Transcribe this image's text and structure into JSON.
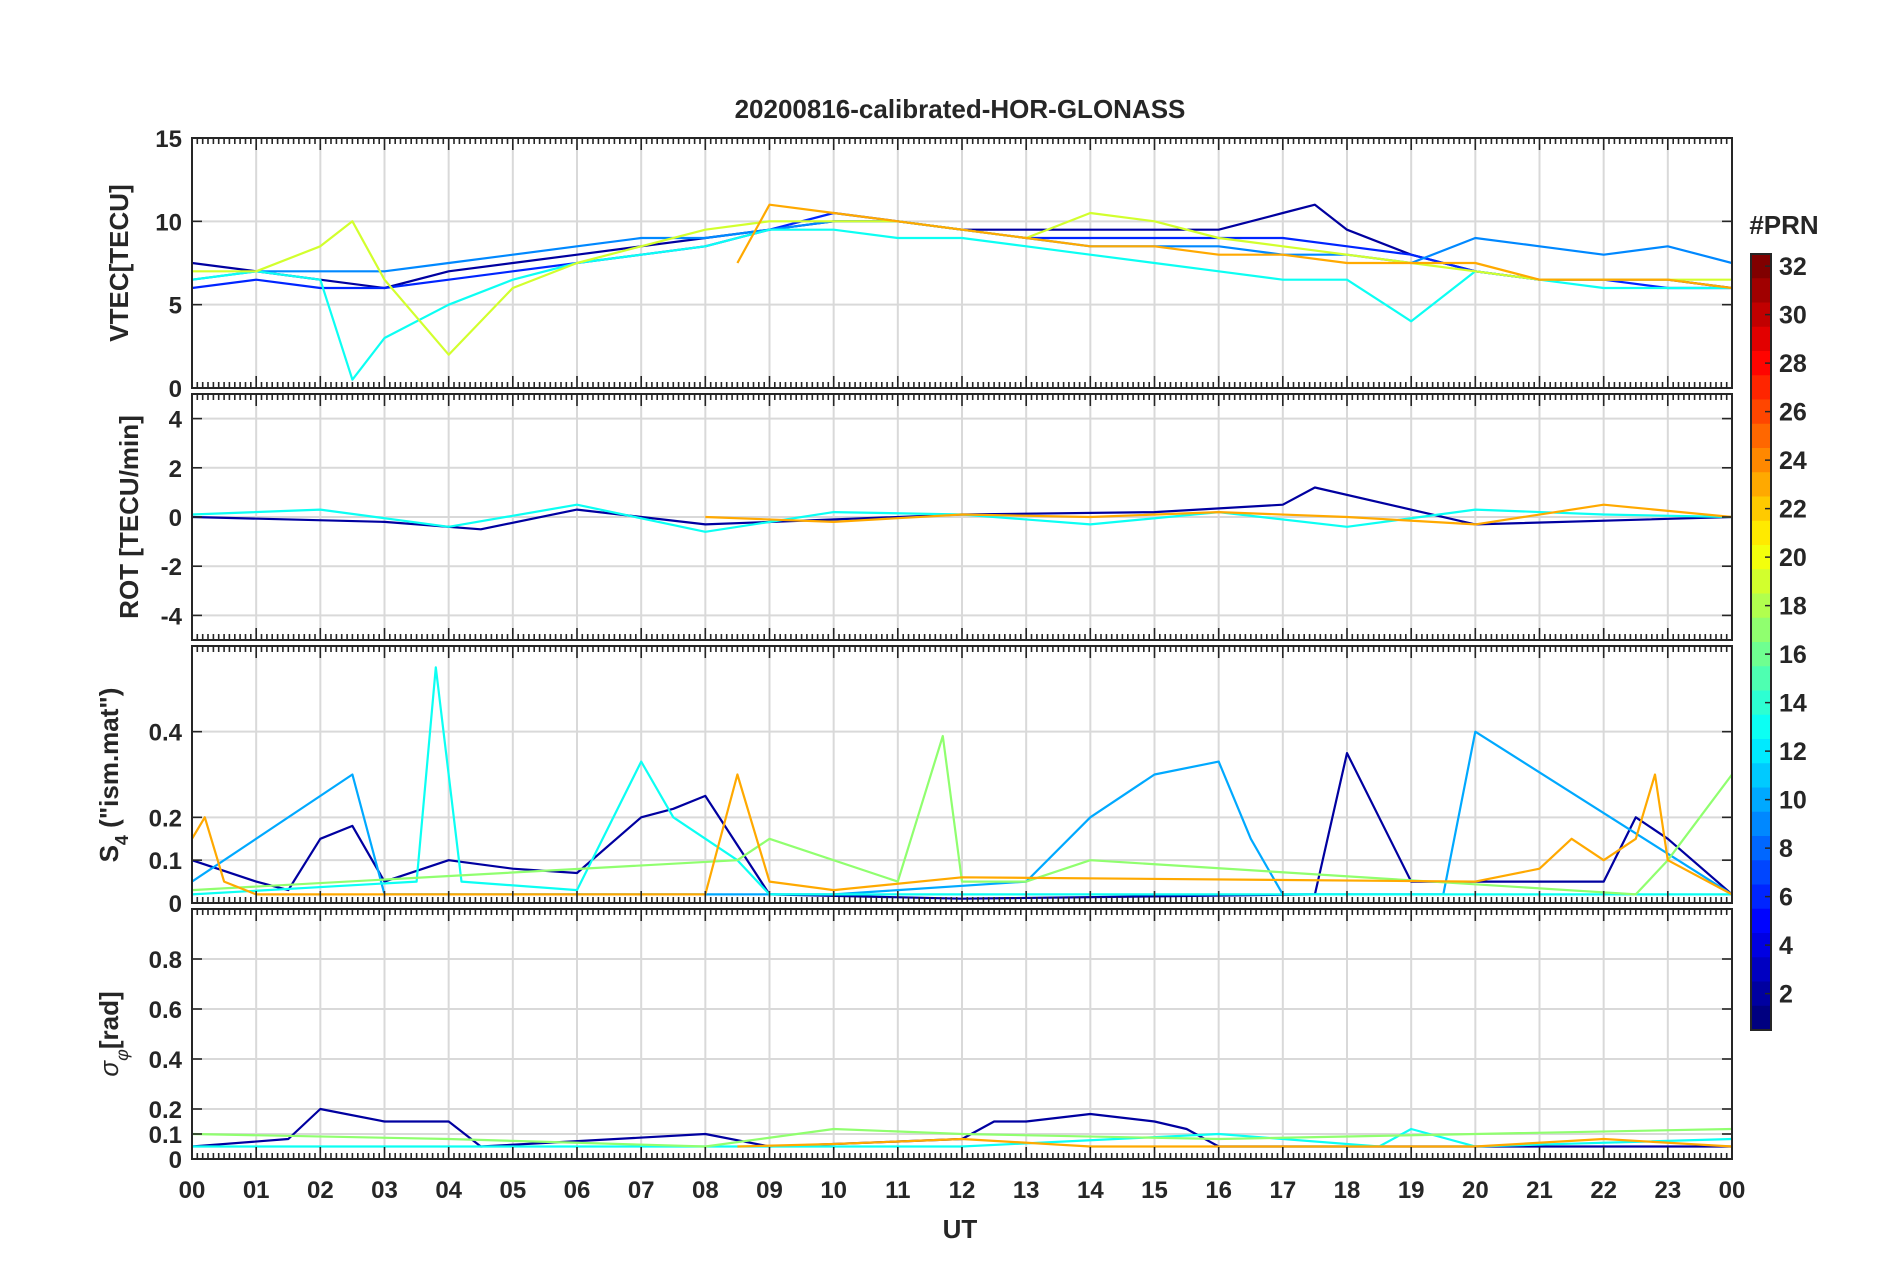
{
  "chart_data": [
    {
      "type": "line",
      "title": "20200816-calibrated-HOR-GLONASS",
      "xlabel": "",
      "ylabel": "VTEC[TECU]",
      "ylim": [
        0,
        15
      ],
      "yticks": [
        0,
        5,
        10,
        15
      ],
      "xlim": [
        0,
        24
      ],
      "grid": true,
      "series_description_note": "",
      "series": [
        {
          "prn": 2,
          "x": [
            0,
            1,
            2,
            3,
            4,
            5,
            6,
            7,
            8,
            9,
            10,
            11,
            12,
            13,
            14,
            15,
            16,
            17,
            17.5,
            18,
            19,
            20,
            21,
            22,
            23,
            24
          ],
          "values": [
            7.5,
            7,
            6.5,
            6,
            7,
            7.5,
            8,
            8.5,
            9,
            9.5,
            10,
            10,
            9.5,
            9.5,
            9.5,
            9.5,
            9.5,
            10.5,
            11,
            9.5,
            8,
            7,
            6.5,
            6.5,
            6.5,
            6
          ]
        },
        {
          "prn": 6,
          "x": [
            0,
            1,
            2,
            3,
            4,
            5,
            6,
            7,
            8,
            9,
            10,
            11,
            12,
            13,
            14,
            15,
            16,
            17,
            18,
            19,
            20,
            21,
            22,
            23,
            24
          ],
          "values": [
            6,
            6.5,
            6,
            6,
            6.5,
            7,
            7.5,
            8,
            8.5,
            9.5,
            10.5,
            10,
            9.5,
            9,
            9,
            9,
            9,
            9,
            8.5,
            8,
            7,
            6.5,
            6.5,
            6,
            6
          ]
        },
        {
          "prn": 9,
          "x": [
            0,
            1,
            2,
            3,
            4,
            5,
            6,
            7,
            8,
            9,
            10,
            11,
            12,
            13,
            14,
            15,
            16,
            17,
            18,
            19,
            20,
            21,
            22,
            23,
            24
          ],
          "values": [
            6.5,
            7,
            7,
            7,
            7.5,
            8,
            8.5,
            9,
            9,
            9.5,
            10,
            10,
            9.5,
            9,
            8.5,
            8.5,
            8.5,
            8,
            8,
            7.5,
            9,
            8.5,
            8,
            8.5,
            7.5
          ]
        },
        {
          "prn": 13,
          "x": [
            0,
            1,
            2,
            2.5,
            3,
            4,
            5,
            6,
            7,
            8,
            9,
            10,
            11,
            12,
            13,
            14,
            15,
            16,
            17,
            18,
            19,
            20,
            21,
            22,
            23,
            24
          ],
          "values": [
            6.5,
            7,
            6.5,
            0.5,
            3,
            5,
            6.5,
            7.5,
            8,
            8.5,
            9.5,
            9.5,
            9,
            9,
            8.5,
            8,
            7.5,
            7,
            6.5,
            6.5,
            4,
            7,
            6.5,
            6,
            6,
            6
          ]
        },
        {
          "prn": 19,
          "x": [
            0,
            1,
            2,
            2.5,
            3,
            4,
            5,
            6,
            7,
            8,
            9,
            10,
            11,
            12,
            13,
            14,
            15,
            16,
            17,
            18,
            19,
            20,
            21,
            22,
            23,
            24
          ],
          "values": [
            7,
            7,
            8.5,
            10,
            6.5,
            2,
            6,
            7.5,
            8.5,
            9.5,
            10,
            10,
            10,
            9.5,
            9,
            10.5,
            10,
            9,
            8.5,
            8,
            7.5,
            7,
            6.5,
            6.5,
            6.5,
            6.5
          ]
        },
        {
          "prn": 23,
          "x": [
            8.5,
            9,
            10,
            11,
            12,
            13,
            14,
            15,
            16,
            17,
            18,
            19,
            20,
            21,
            22,
            23,
            24
          ],
          "values": [
            7.5,
            11,
            10.5,
            10,
            9.5,
            9,
            8.5,
            8.5,
            8,
            8,
            7.5,
            7.5,
            7.5,
            6.5,
            6.5,
            6.5,
            6
          ]
        }
      ]
    },
    {
      "type": "line",
      "title": "",
      "xlabel": "",
      "ylabel": "ROT [TECU/min]",
      "ylim": [
        -5,
        5
      ],
      "yticks": [
        -4,
        -2,
        0,
        2,
        4
      ],
      "xlim": [
        0,
        24
      ],
      "grid": true,
      "series": [
        {
          "prn": 2,
          "x": [
            0,
            3,
            4.5,
            6,
            8,
            12,
            15,
            17,
            17.5,
            20,
            24
          ],
          "values": [
            0,
            -0.2,
            -0.5,
            0.3,
            -0.3,
            0.1,
            0.2,
            0.5,
            1.2,
            -0.3,
            0
          ]
        },
        {
          "prn": 13,
          "x": [
            0,
            2,
            4,
            6,
            8,
            10,
            12,
            14,
            16,
            18,
            20,
            22,
            24
          ],
          "values": [
            0.1,
            0.3,
            -0.4,
            0.5,
            -0.6,
            0.2,
            0.1,
            -0.3,
            0.2,
            -0.4,
            0.3,
            0.1,
            0
          ]
        },
        {
          "prn": 23,
          "x": [
            8,
            10,
            12,
            14,
            16,
            18,
            20,
            22,
            24
          ],
          "values": [
            0,
            -0.2,
            0.1,
            0,
            0.2,
            0,
            -0.3,
            0.5,
            0
          ]
        }
      ]
    },
    {
      "type": "line",
      "title": "",
      "xlabel": "",
      "ylabel": "S4 (\"ism.mat\")",
      "ylim": [
        0,
        0.6
      ],
      "yticks": [
        0,
        0.1,
        0.2,
        0.4
      ],
      "xlim": [
        0,
        24
      ],
      "grid": true,
      "series": [
        {
          "prn": 2,
          "x": [
            0,
            1,
            1.5,
            2,
            2.5,
            3,
            4,
            5,
            6,
            7,
            7.5,
            8,
            9,
            12,
            17.5,
            18,
            19,
            20,
            22,
            22.5,
            23,
            24
          ],
          "values": [
            0.1,
            0.05,
            0.03,
            0.15,
            0.18,
            0.05,
            0.1,
            0.08,
            0.07,
            0.2,
            0.22,
            0.25,
            0.02,
            0.01,
            0.02,
            0.35,
            0.05,
            0.05,
            0.05,
            0.2,
            0.15,
            0.02
          ]
        },
        {
          "prn": 10,
          "x": [
            0,
            2.5,
            3,
            10,
            11,
            13,
            14,
            15,
            16,
            16.5,
            17,
            19.5,
            20,
            24
          ],
          "values": [
            0.05,
            0.3,
            0.02,
            0.02,
            0.03,
            0.05,
            0.2,
            0.3,
            0.33,
            0.15,
            0.02,
            0.02,
            0.4,
            0.02
          ]
        },
        {
          "prn": 13,
          "x": [
            0,
            3.5,
            3.8,
            4.2,
            6,
            7,
            7.5,
            8.5,
            9,
            24
          ],
          "values": [
            0.02,
            0.05,
            0.55,
            0.05,
            0.03,
            0.33,
            0.2,
            0.1,
            0.02,
            0.02
          ]
        },
        {
          "prn": 17,
          "x": [
            0,
            8.5,
            9,
            11,
            11.7,
            12,
            13,
            14,
            22.5,
            23,
            23.5,
            24
          ],
          "values": [
            0.03,
            0.1,
            0.15,
            0.05,
            0.39,
            0.05,
            0.05,
            0.1,
            0.02,
            0.1,
            0.2,
            0.3
          ]
        },
        {
          "prn": 23,
          "x": [
            0,
            0.2,
            0.5,
            1,
            8,
            8.5,
            9,
            10,
            12,
            20,
            21,
            21.5,
            22,
            22.5,
            22.8,
            23,
            24
          ],
          "values": [
            0.15,
            0.2,
            0.05,
            0.02,
            0.02,
            0.3,
            0.05,
            0.03,
            0.06,
            0.05,
            0.08,
            0.15,
            0.1,
            0.15,
            0.3,
            0.1,
            0.02
          ]
        }
      ]
    },
    {
      "type": "line",
      "title": "",
      "xlabel": "UT",
      "ylabel": "σφ[rad]",
      "ylim": [
        0,
        1
      ],
      "yticks": [
        0,
        0.1,
        0.2,
        0.4,
        0.6,
        0.8
      ],
      "xlim": [
        0,
        24
      ],
      "xtick_labels": [
        "00",
        "01",
        "02",
        "03",
        "04",
        "05",
        "06",
        "07",
        "08",
        "09",
        "10",
        "11",
        "12",
        "13",
        "14",
        "15",
        "16",
        "17",
        "18",
        "19",
        "20",
        "21",
        "22",
        "23",
        "00"
      ],
      "grid": true,
      "series": [
        {
          "prn": 2,
          "x": [
            0,
            1.5,
            2,
            3,
            4,
            4.5,
            8,
            9,
            12,
            12.5,
            13,
            14,
            15,
            15.5,
            16,
            24
          ],
          "values": [
            0.05,
            0.08,
            0.2,
            0.15,
            0.15,
            0.05,
            0.1,
            0.05,
            0.08,
            0.15,
            0.15,
            0.18,
            0.15,
            0.12,
            0.05,
            0.05
          ]
        },
        {
          "prn": 13,
          "x": [
            0,
            4,
            8,
            12,
            16,
            18.5,
            19,
            20,
            24
          ],
          "values": [
            0.05,
            0.05,
            0.05,
            0.05,
            0.1,
            0.05,
            0.12,
            0.05,
            0.08
          ]
        },
        {
          "prn": 17,
          "x": [
            0,
            4,
            8,
            10,
            12,
            16,
            20,
            24
          ],
          "values": [
            0.1,
            0.08,
            0.05,
            0.12,
            0.1,
            0.08,
            0.1,
            0.12
          ]
        },
        {
          "prn": 23,
          "x": [
            8.5,
            10,
            12,
            14,
            16,
            18,
            20,
            22,
            24
          ],
          "values": [
            0.05,
            0.06,
            0.08,
            0.05,
            0.05,
            0.05,
            0.05,
            0.08,
            0.05
          ]
        }
      ]
    }
  ],
  "colorbar": {
    "label": "#PRN",
    "range": [
      1,
      32
    ],
    "tick_labels": [
      "32",
      "30",
      "28",
      "26",
      "24",
      "22",
      "20",
      "18",
      "16",
      "14",
      "12",
      "10",
      "8",
      "6",
      "4",
      "2"
    ],
    "colormap": "jet"
  },
  "labels": {
    "title": "20200816-calibrated-HOR-GLONASS",
    "vtec_ylabel": "VTEC[TECU]",
    "rot_ylabel": "ROT [TECU/min]",
    "s4_ylabel_main": "S",
    "s4_ylabel_sub": "4",
    "s4_ylabel_rest": " (\"ism.mat\")",
    "sigma_ylabel_main": "σ",
    "sigma_ylabel_sub": "φ",
    "sigma_ylabel_rest": "[rad]",
    "xlabel": "UT"
  }
}
